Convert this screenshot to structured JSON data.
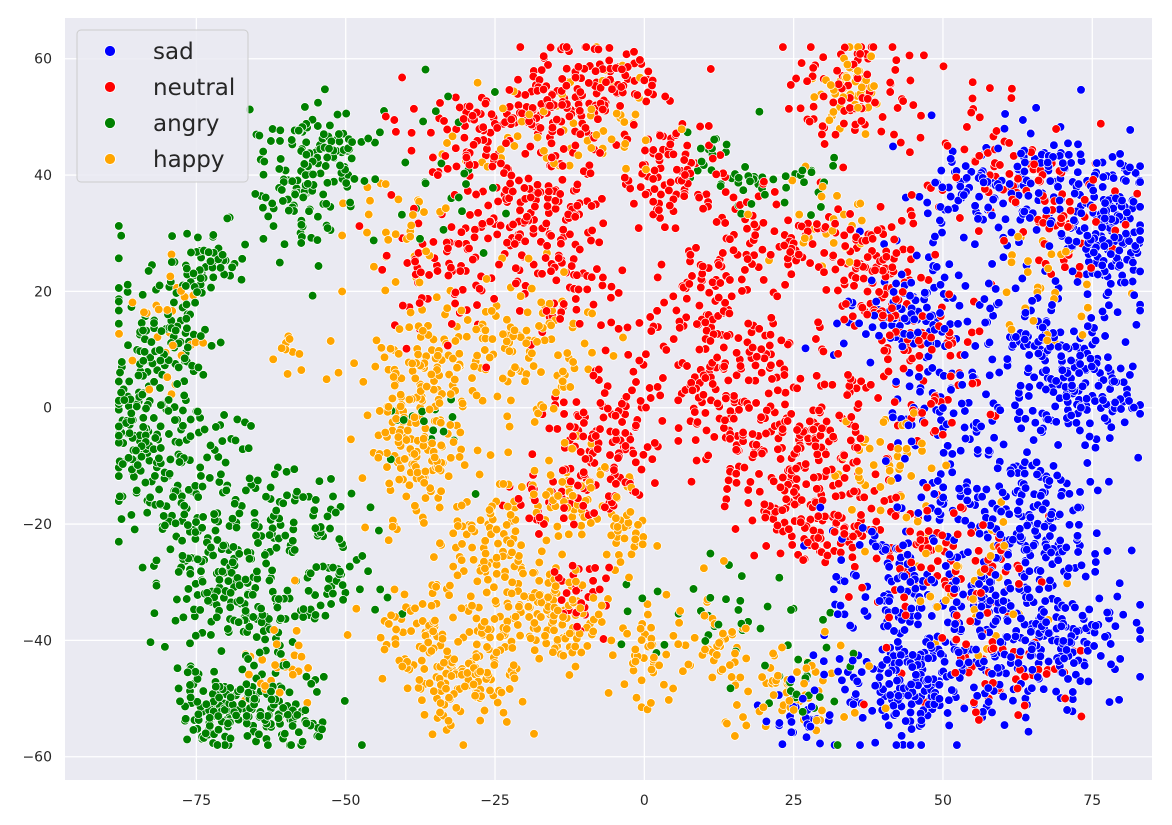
{
  "chart_data": {
    "type": "scatter",
    "title": "",
    "xlabel": "",
    "ylabel": "",
    "xlim": [
      -97,
      85
    ],
    "ylim": [
      -64,
      67
    ],
    "xticks": [
      -75,
      -50,
      -25,
      0,
      25,
      50,
      75
    ],
    "yticks": [
      -60,
      -40,
      -20,
      0,
      20,
      40,
      60
    ],
    "xtick_labels": [
      "−75",
      "−50",
      "−25",
      "0",
      "25",
      "50",
      "75"
    ],
    "ytick_labels": [
      "−60",
      "−40",
      "−20",
      "0",
      "20",
      "40",
      "60"
    ],
    "grid": true,
    "background": "#eaeaf2",
    "legend": {
      "placement": "upper-left"
    },
    "series": [
      {
        "name": "sad",
        "color": "#0000ff",
        "clusters": [
          {
            "x": 78,
            "y": 30,
            "sx": 3.5,
            "sy": 6,
            "n": 140
          },
          {
            "x": 66,
            "y": 38,
            "sx": 7,
            "sy": 6,
            "n": 140
          },
          {
            "x": 72,
            "y": 2,
            "sx": 6,
            "sy": 4,
            "n": 130
          },
          {
            "x": 66,
            "y": 12,
            "sx": 7,
            "sy": 5,
            "n": 90
          },
          {
            "x": 65,
            "y": -22,
            "sx": 6,
            "sy": 9,
            "n": 200
          },
          {
            "x": 68,
            "y": -40,
            "sx": 7,
            "sy": 6,
            "n": 170
          },
          {
            "x": 45,
            "y": -47,
            "sx": 7,
            "sy": 5,
            "n": 200
          },
          {
            "x": 52,
            "y": -35,
            "sx": 6,
            "sy": 6,
            "n": 110
          },
          {
            "x": 45,
            "y": 16,
            "sx": 6,
            "sy": 5,
            "n": 110
          },
          {
            "x": 52,
            "y": 0,
            "sx": 6,
            "sy": 6,
            "n": 80
          },
          {
            "x": 26,
            "y": -53,
            "sx": 3,
            "sy": 2.5,
            "n": 25
          },
          {
            "x": 40,
            "y": -30,
            "sx": 5,
            "sy": 6,
            "n": 60
          },
          {
            "x": 55,
            "y": 35,
            "sx": 6,
            "sy": 5,
            "n": 60
          },
          {
            "x": 50,
            "y": -15,
            "sx": 5,
            "sy": 5,
            "n": 40
          }
        ]
      },
      {
        "name": "neutral",
        "color": "#ff0000",
        "clusters": [
          {
            "x": -8,
            "y": 55,
            "sx": 5,
            "sy": 4,
            "n": 120
          },
          {
            "x": -18,
            "y": 50,
            "sx": 4,
            "sy": 4,
            "n": 60
          },
          {
            "x": -28,
            "y": 48,
            "sx": 6,
            "sy": 5,
            "n": 70
          },
          {
            "x": -18,
            "y": 34,
            "sx": 6,
            "sy": 5,
            "n": 140
          },
          {
            "x": 5,
            "y": 40,
            "sx": 4,
            "sy": 5,
            "n": 90
          },
          {
            "x": -33,
            "y": 25,
            "sx": 5,
            "sy": 7,
            "n": 80
          },
          {
            "x": -12,
            "y": 20,
            "sx": 4,
            "sy": 5,
            "n": 50
          },
          {
            "x": 10,
            "y": 20,
            "sx": 5,
            "sy": 4,
            "n": 60
          },
          {
            "x": 22,
            "y": 28,
            "sx": 6,
            "sy": 4,
            "n": 80
          },
          {
            "x": 38,
            "y": 25,
            "sx": 5,
            "sy": 5,
            "n": 80
          },
          {
            "x": 35,
            "y": 55,
            "sx": 5,
            "sy": 5,
            "n": 80
          },
          {
            "x": 60,
            "y": 42,
            "sx": 7,
            "sy": 5,
            "n": 70
          },
          {
            "x": 15,
            "y": 5,
            "sx": 7,
            "sy": 6,
            "n": 140
          },
          {
            "x": 25,
            "y": -8,
            "sx": 8,
            "sy": 6,
            "n": 170
          },
          {
            "x": -5,
            "y": -3,
            "sx": 6,
            "sy": 5,
            "n": 100
          },
          {
            "x": -12,
            "y": -14,
            "sx": 5,
            "sy": 4,
            "n": 70
          },
          {
            "x": 30,
            "y": -20,
            "sx": 6,
            "sy": 5,
            "n": 100
          },
          {
            "x": 50,
            "y": -28,
            "sx": 7,
            "sy": 7,
            "n": 110
          },
          {
            "x": 48,
            "y": 5,
            "sx": 5,
            "sy": 6,
            "n": 60
          },
          {
            "x": 38,
            "y": 15,
            "sx": 5,
            "sy": 5,
            "n": 50
          },
          {
            "x": -10,
            "y": -32,
            "sx": 3,
            "sy": 3,
            "n": 30
          },
          {
            "x": 60,
            "y": -45,
            "sx": 7,
            "sy": 4,
            "n": 40
          },
          {
            "x": 70,
            "y": 30,
            "sx": 5,
            "sy": 5,
            "n": 50
          }
        ]
      },
      {
        "name": "angry",
        "color": "#008000",
        "clusters": [
          {
            "x": -80,
            "y": 12,
            "sx": 5,
            "sy": 7,
            "n": 120
          },
          {
            "x": -74,
            "y": 25,
            "sx": 3,
            "sy": 3,
            "n": 50
          },
          {
            "x": -85,
            "y": -5,
            "sx": 3,
            "sy": 6,
            "n": 100
          },
          {
            "x": -75,
            "y": -15,
            "sx": 5,
            "sy": 7,
            "n": 130
          },
          {
            "x": -72,
            "y": -30,
            "sx": 5,
            "sy": 6,
            "n": 110
          },
          {
            "x": -70,
            "y": -52,
            "sx": 4,
            "sy": 3,
            "n": 130
          },
          {
            "x": -60,
            "y": -53,
            "sx": 4,
            "sy": 3,
            "n": 60
          },
          {
            "x": -63,
            "y": -37,
            "sx": 4,
            "sy": 5,
            "n": 60
          },
          {
            "x": -58,
            "y": 38,
            "sx": 4,
            "sy": 6,
            "n": 100
          },
          {
            "x": -52,
            "y": 45,
            "sx": 4,
            "sy": 3,
            "n": 50
          },
          {
            "x": -58,
            "y": -20,
            "sx": 6,
            "sy": 5,
            "n": 60
          },
          {
            "x": -52,
            "y": -30,
            "sx": 4,
            "sy": 4,
            "n": 40
          },
          {
            "x": 14,
            "y": 40,
            "sx": 4,
            "sy": 4,
            "n": 30
          },
          {
            "x": 25,
            "y": 40,
            "sx": 4,
            "sy": 3,
            "n": 20
          },
          {
            "x": 10,
            "y": -35,
            "sx": 6,
            "sy": 5,
            "n": 30
          },
          {
            "x": 25,
            "y": -45,
            "sx": 5,
            "sy": 5,
            "n": 25
          },
          {
            "x": -35,
            "y": 40,
            "sx": 8,
            "sy": 8,
            "n": 30
          },
          {
            "x": -40,
            "y": -5,
            "sx": 5,
            "sy": 5,
            "n": 15
          }
        ]
      },
      {
        "name": "happy",
        "color": "#ffa500",
        "clusters": [
          {
            "x": -37,
            "y": 5,
            "sx": 5,
            "sy": 6,
            "n": 120
          },
          {
            "x": -20,
            "y": 10,
            "sx": 6,
            "sy": 6,
            "n": 110
          },
          {
            "x": -37,
            "y": -10,
            "sx": 5,
            "sy": 6,
            "n": 110
          },
          {
            "x": -25,
            "y": -23,
            "sx": 4,
            "sy": 4,
            "n": 80
          },
          {
            "x": -22,
            "y": -35,
            "sx": 6,
            "sy": 5,
            "n": 80
          },
          {
            "x": -35,
            "y": -40,
            "sx": 5,
            "sy": 5,
            "n": 100
          },
          {
            "x": -28,
            "y": -48,
            "sx": 4,
            "sy": 4,
            "n": 80
          },
          {
            "x": -13,
            "y": -36,
            "sx": 4,
            "sy": 4,
            "n": 70
          },
          {
            "x": -5,
            "y": -22,
            "sx": 4,
            "sy": 4,
            "n": 40
          },
          {
            "x": 0,
            "y": -43,
            "sx": 3,
            "sy": 4,
            "n": 40
          },
          {
            "x": -13,
            "y": -15,
            "sx": 4,
            "sy": 4,
            "n": 50
          },
          {
            "x": -22,
            "y": 48,
            "sx": 6,
            "sy": 4,
            "n": 30
          },
          {
            "x": -40,
            "y": 32,
            "sx": 4,
            "sy": 6,
            "n": 30
          },
          {
            "x": 35,
            "y": 55,
            "sx": 3,
            "sy": 3,
            "n": 50
          },
          {
            "x": 25,
            "y": -48,
            "sx": 6,
            "sy": 4,
            "n": 60
          },
          {
            "x": 12,
            "y": -40,
            "sx": 4,
            "sy": 5,
            "n": 40
          },
          {
            "x": 40,
            "y": -10,
            "sx": 5,
            "sy": 5,
            "n": 40
          },
          {
            "x": 55,
            "y": -30,
            "sx": 6,
            "sy": 6,
            "n": 40
          },
          {
            "x": 68,
            "y": 20,
            "sx": 5,
            "sy": 5,
            "n": 30
          },
          {
            "x": -80,
            "y": 15,
            "sx": 3,
            "sy": 6,
            "n": 30
          },
          {
            "x": -62,
            "y": -45,
            "sx": 4,
            "sy": 4,
            "n": 30
          },
          {
            "x": 30,
            "y": 30,
            "sx": 5,
            "sy": 5,
            "n": 25
          },
          {
            "x": -5,
            "y": 50,
            "sx": 4,
            "sy": 5,
            "n": 30
          },
          {
            "x": -60,
            "y": 10,
            "sx": 3,
            "sy": 2,
            "n": 12
          }
        ]
      }
    ]
  }
}
